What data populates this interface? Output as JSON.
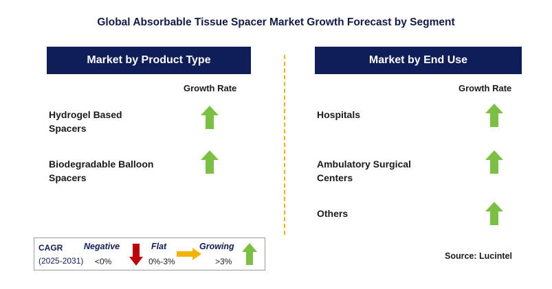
{
  "title": "Global Absorbable Tissue Spacer Market Growth Forecast by Segment",
  "left_panel": {
    "header": "Market by Product Type",
    "growth_rate_label": "Growth Rate",
    "segments": [
      {
        "label_line1": "Hydrogel Based",
        "label_line2": "Spacers",
        "trend": "growing"
      },
      {
        "label_line1": "Biodegradable Balloon",
        "label_line2": "Spacers",
        "trend": "growing"
      }
    ]
  },
  "right_panel": {
    "header": "Market by End Use",
    "growth_rate_label": "Growth Rate",
    "segments": [
      {
        "label_line1": "Hospitals",
        "label_line2": "",
        "trend": "growing"
      },
      {
        "label_line1": "Ambulatory Surgical",
        "label_line2": "Centers",
        "trend": "growing"
      },
      {
        "label_line1": "Others",
        "label_line2": "",
        "trend": "growing"
      }
    ]
  },
  "legend": {
    "cagr_label": "CAGR",
    "period": "(2025-2031)",
    "negative_label": "Negative",
    "negative_range": "<0%",
    "flat_label": "Flat",
    "flat_range": "0%-3%",
    "growing_label": "Growing",
    "growing_range": ">3%"
  },
  "source": "Source: Lucintel",
  "colors": {
    "header_bg": "#0f1d58",
    "divider": "#f2b400",
    "growing_arrow": "#7ac143",
    "negative_arrow": "#c00000",
    "flat_arrow": "#f2b400"
  }
}
